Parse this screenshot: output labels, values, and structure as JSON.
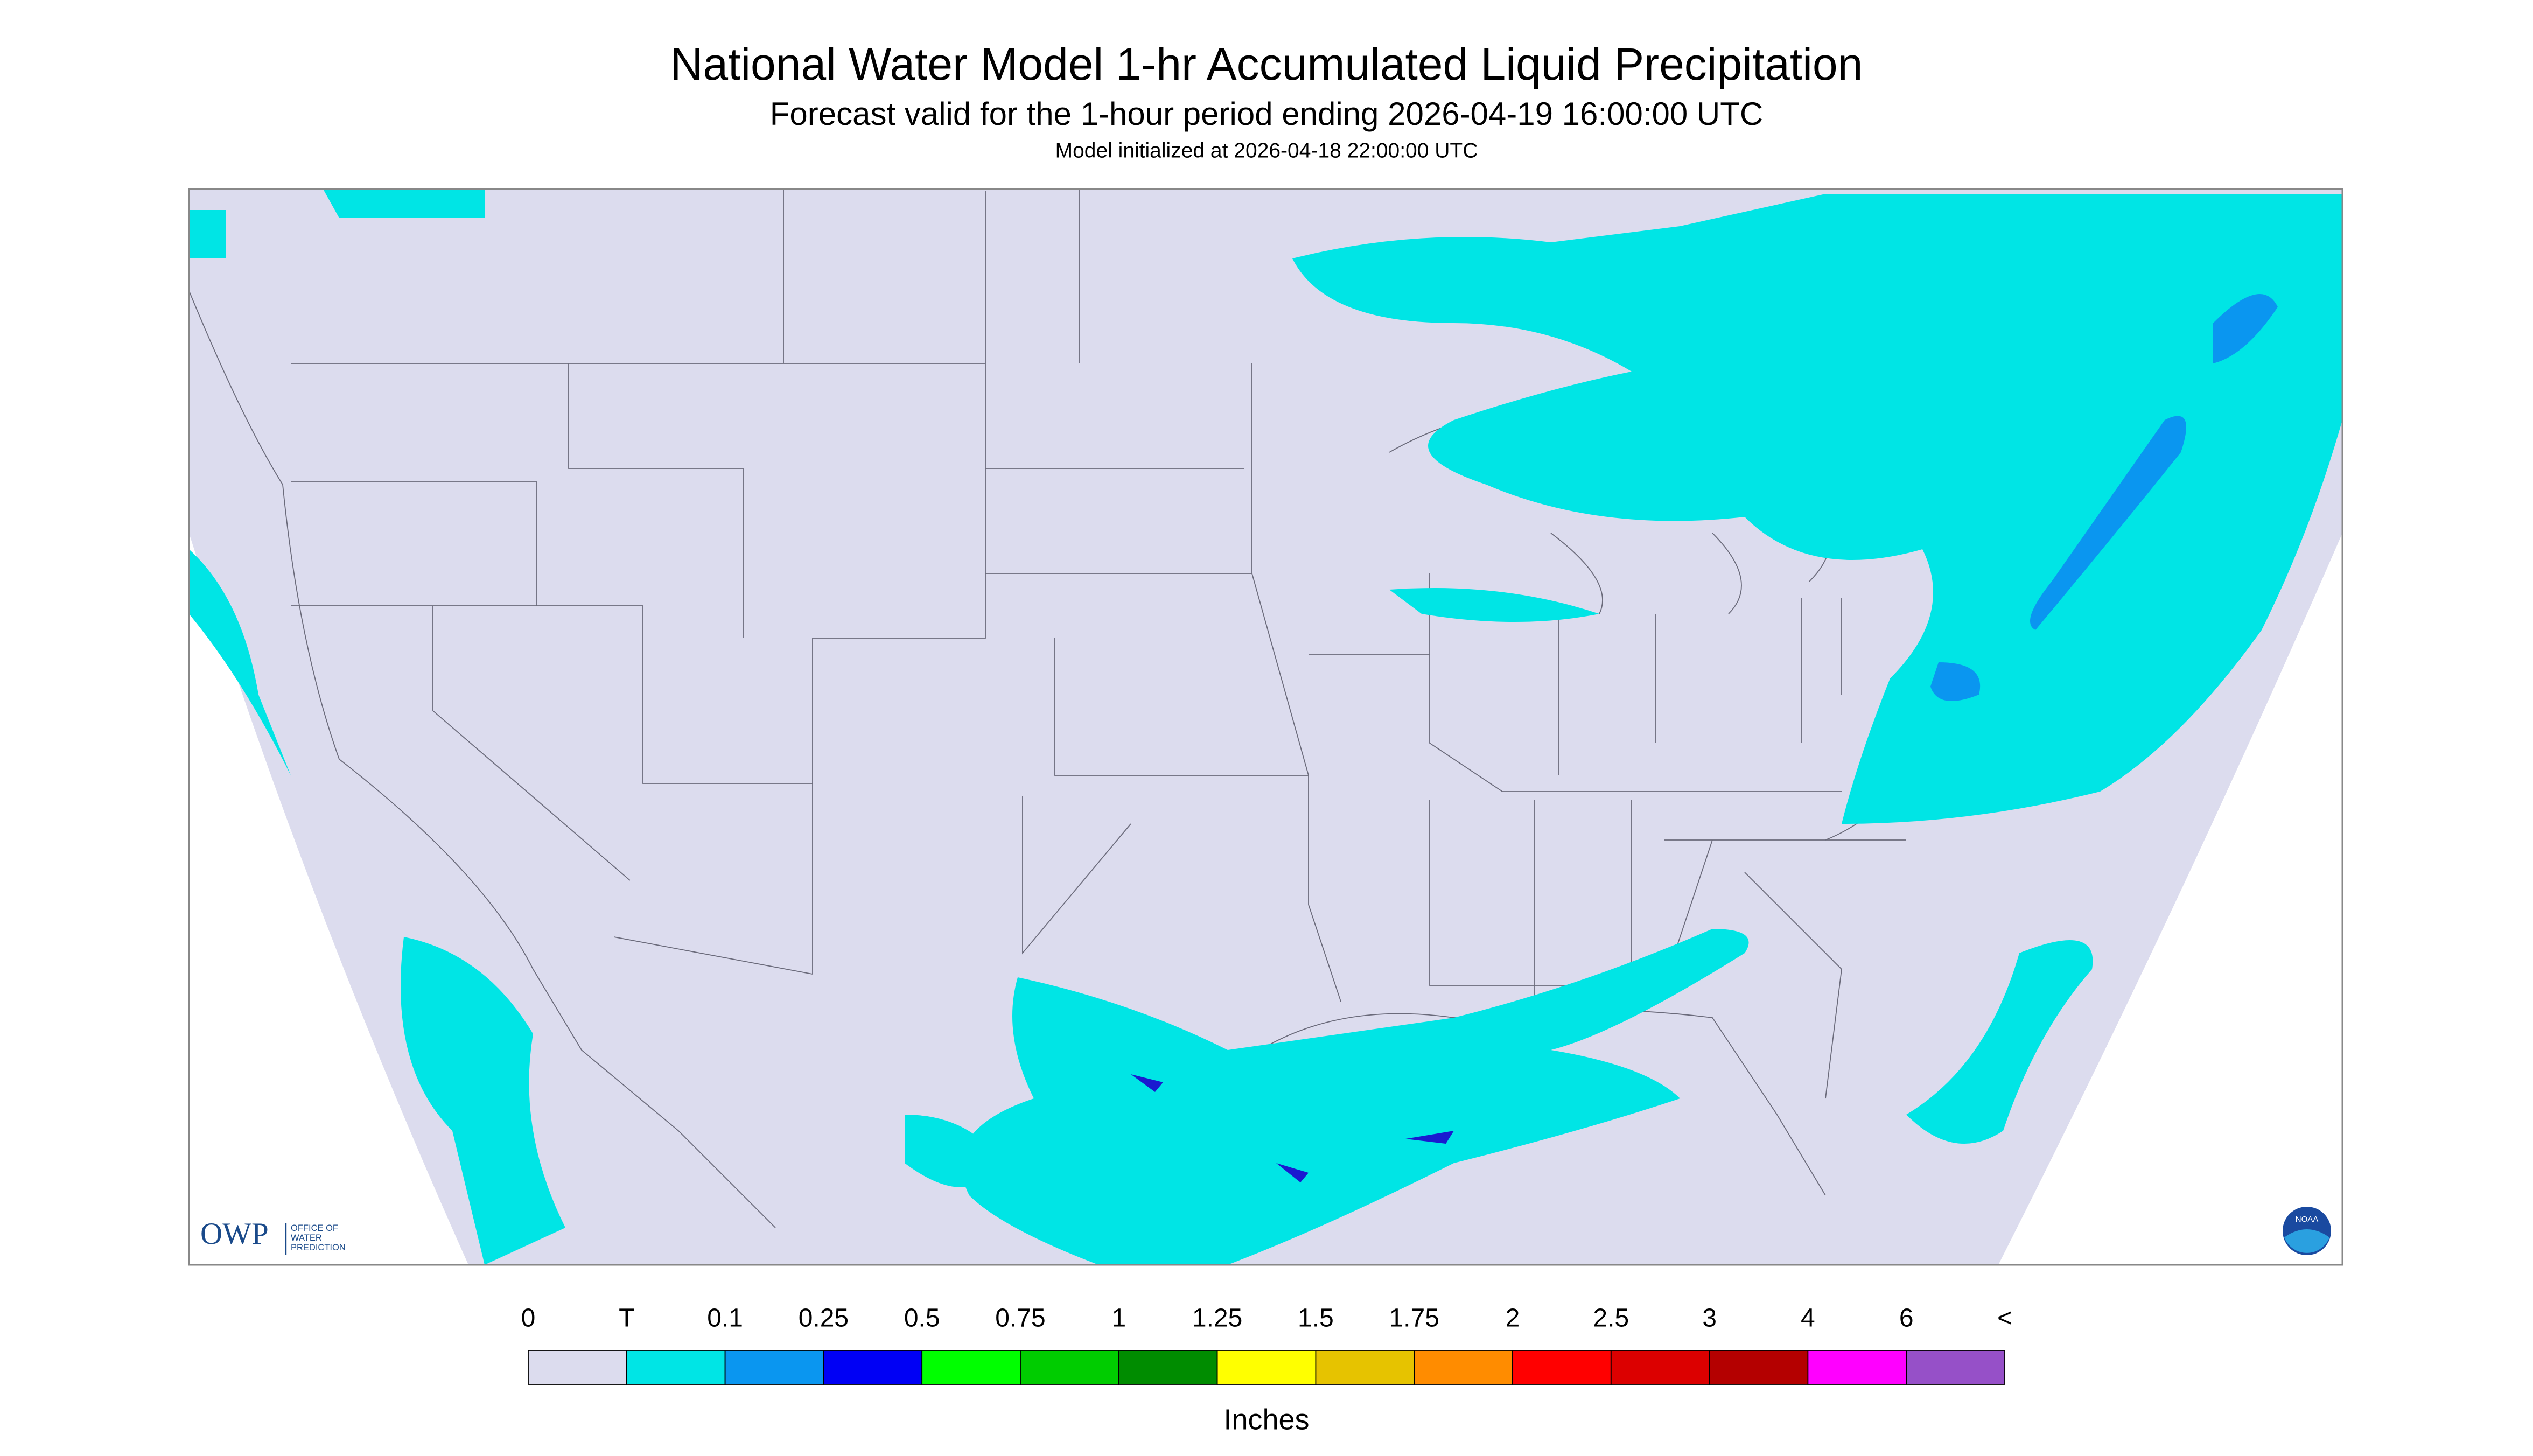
{
  "header": {
    "title": "National Water Model 1-hr Accumulated Liquid Precipitation",
    "subtitle": "Forecast valid for the 1-hour period ending 2026-04-19 16:00:00 UTC",
    "init": "Model initialized at 2026-04-18 22:00:00 UTC"
  },
  "legend": {
    "labels": [
      "0",
      "T",
      "0.1",
      "0.25",
      "0.5",
      "0.75",
      "1",
      "1.25",
      "1.5",
      "1.75",
      "2",
      "2.5",
      "3",
      "4",
      "6",
      "<"
    ],
    "colors": [
      "#dcdcee",
      "#00e5e5",
      "#0a96f0",
      "#0000f5",
      "#00ff00",
      "#00cc00",
      "#008c00",
      "#ffff00",
      "#e6c300",
      "#ff8c00",
      "#ff0000",
      "#dc0000",
      "#b40000",
      "#ff00ff",
      "#9650c8"
    ],
    "units": "Inches"
  },
  "logos": {
    "owp": "OWP",
    "owp_text": [
      "OFFICE OF",
      "WATER",
      "PREDICTION"
    ],
    "noaa": "NOAA"
  }
}
